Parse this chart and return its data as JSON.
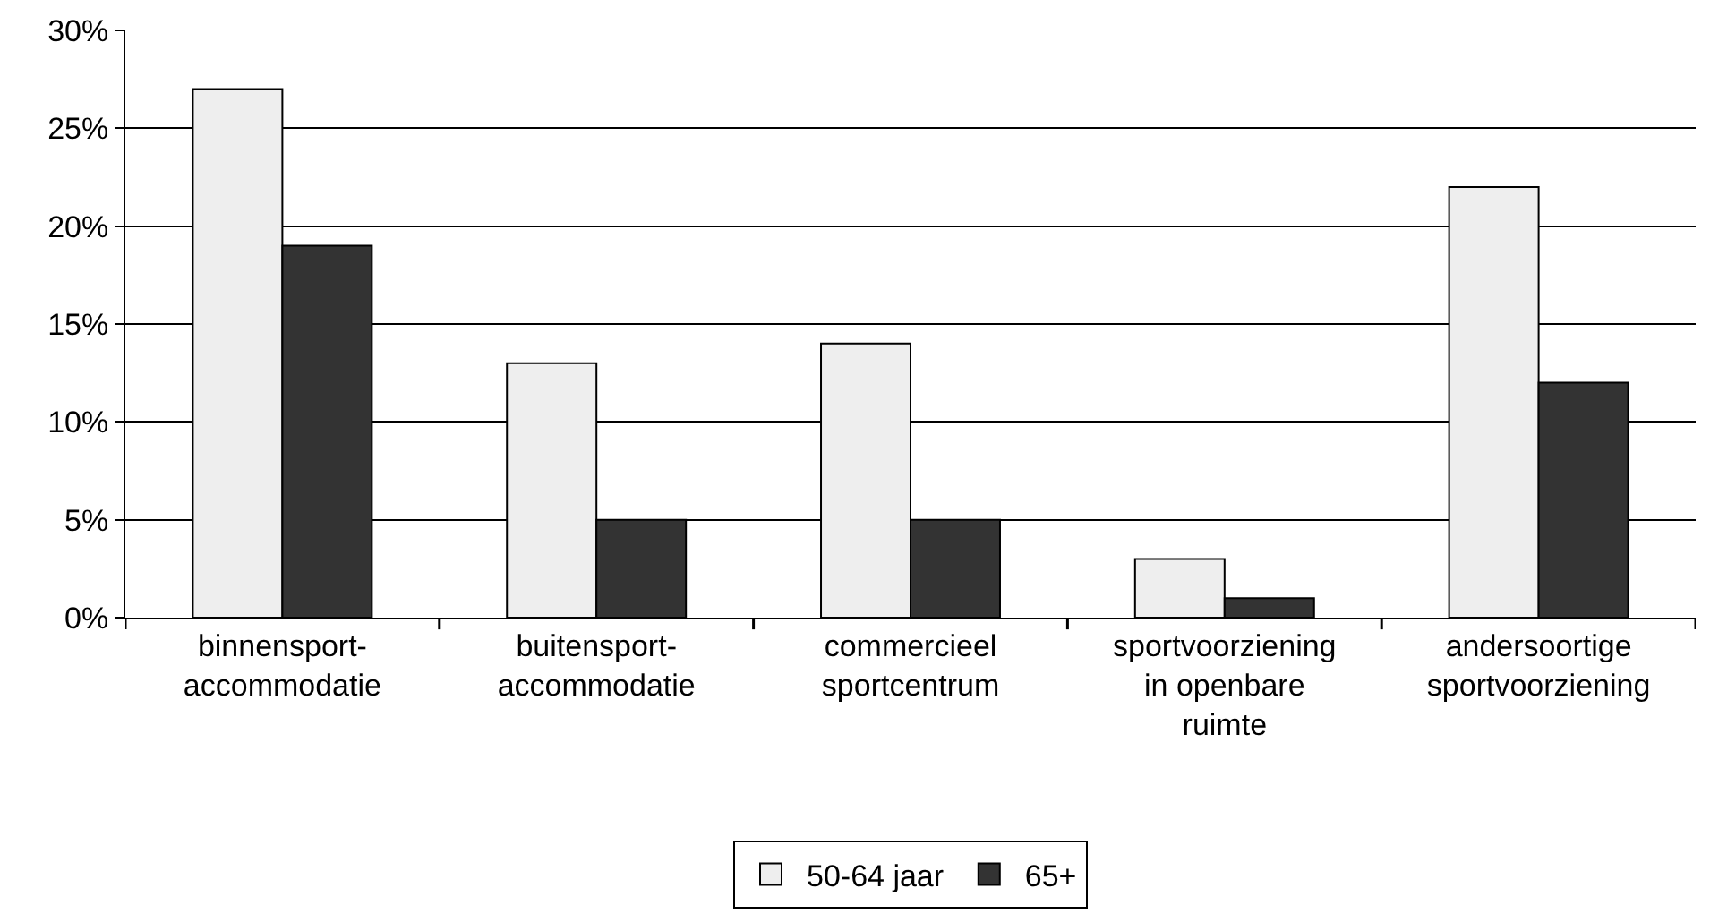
{
  "chart_data": {
    "type": "bar",
    "categories": [
      "binnensport-\naccommodatie",
      "buitensport-\naccommodatie",
      "commercieel\nsportcentrum",
      "sportvoorziening\nin openbare\nruimte",
      "andersoortige\nsportvoorziening"
    ],
    "series": [
      {
        "name": "50-64 jaar",
        "color": "#eeeeee",
        "values": [
          27,
          13,
          14,
          3,
          22
        ]
      },
      {
        "name": "65+",
        "color": "#333333",
        "values": [
          19,
          5,
          5,
          1,
          12
        ]
      }
    ],
    "ylim": [
      0,
      30
    ],
    "yticks": [
      {
        "value": 0,
        "label": "0%"
      },
      {
        "value": 5,
        "label": "5%"
      },
      {
        "value": 10,
        "label": "10%"
      },
      {
        "value": 15,
        "label": "15%"
      },
      {
        "value": 20,
        "label": "20%"
      },
      {
        "value": 25,
        "label": "25%"
      },
      {
        "value": 30,
        "label": "30%"
      }
    ],
    "grid": "y",
    "legend": "bottom"
  }
}
